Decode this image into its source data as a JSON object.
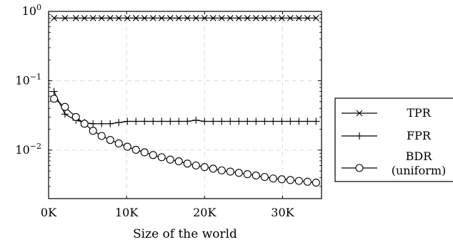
{
  "chart_data": {
    "type": "line",
    "xlabel": "Size of the world",
    "x_tick_labels": [
      "0K",
      "10K",
      "20K",
      "30K"
    ],
    "x_tick_values": [
      0,
      10000,
      20000,
      30000
    ],
    "xlim": [
      0,
      35000
    ],
    "y_scale": "log",
    "ylim": [
      0.002,
      1
    ],
    "y_ticks": [
      {
        "value": 1,
        "base": "10",
        "exp": "0"
      },
      {
        "value": 0.1,
        "base": "10",
        "exp": "−1"
      },
      {
        "value": 0.01,
        "base": "10",
        "exp": "−2"
      }
    ],
    "grid": true,
    "legend_position": "outside-right",
    "x": [
      700,
      2100,
      3500,
      4600,
      5700,
      6800,
      7900,
      9000,
      10100,
      11200,
      12300,
      13400,
      14500,
      15600,
      16700,
      17800,
      18900,
      20000,
      21100,
      22200,
      23300,
      24400,
      25500,
      26600,
      27700,
      28800,
      29900,
      31000,
      32100,
      33200,
      34300
    ],
    "series": [
      {
        "name": "TPR",
        "marker": "cross",
        "values": [
          0.8,
          0.8,
          0.8,
          0.8,
          0.8,
          0.8,
          0.8,
          0.8,
          0.8,
          0.8,
          0.8,
          0.8,
          0.8,
          0.8,
          0.8,
          0.8,
          0.8,
          0.8,
          0.8,
          0.8,
          0.8,
          0.8,
          0.8,
          0.8,
          0.8,
          0.8,
          0.8,
          0.8,
          0.8,
          0.8,
          0.8
        ]
      },
      {
        "name": "FPR",
        "marker": "plus",
        "values": [
          0.07,
          0.033,
          0.027,
          0.025,
          0.024,
          0.024,
          0.024,
          0.025,
          0.026,
          0.026,
          0.026,
          0.026,
          0.026,
          0.026,
          0.026,
          0.026,
          0.027,
          0.026,
          0.026,
          0.026,
          0.026,
          0.026,
          0.026,
          0.026,
          0.026,
          0.026,
          0.026,
          0.026,
          0.026,
          0.026,
          0.026
        ]
      },
      {
        "name": "BDR",
        "name_line2": "(uniform)",
        "marker": "circle",
        "values": [
          0.055,
          0.042,
          0.03,
          0.024,
          0.019,
          0.016,
          0.014,
          0.0125,
          0.0112,
          0.0101,
          0.0093,
          0.0085,
          0.0079,
          0.0073,
          0.0069,
          0.0064,
          0.006,
          0.0057,
          0.0054,
          0.0051,
          0.0049,
          0.0047,
          0.0045,
          0.0043,
          0.0041,
          0.0039,
          0.0038,
          0.0037,
          0.0036,
          0.0035,
          0.0034
        ]
      }
    ]
  }
}
